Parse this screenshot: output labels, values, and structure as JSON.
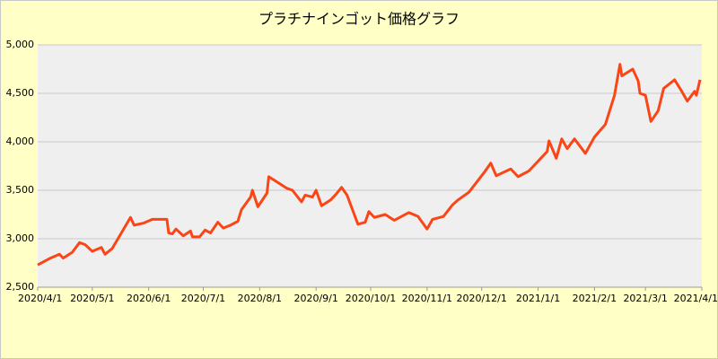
{
  "chart_data": {
    "type": "line",
    "title": "プラチナインゴット価格グラフ",
    "x": [
      "2020/4/1",
      "2020/4/8",
      "2020/4/13",
      "2020/4/15",
      "2020/4/20",
      "2020/4/24",
      "2020/4/27",
      "2020/5/1",
      "2020/5/6",
      "2020/5/8",
      "2020/5/12",
      "2020/5/22",
      "2020/5/24",
      "2020/5/29",
      "2020/6/3",
      "2020/6/11",
      "2020/6/12",
      "2020/6/14",
      "2020/6/16",
      "2020/6/20",
      "2020/6/24",
      "2020/6/25",
      "2020/6/29",
      "2020/7/2",
      "2020/7/5",
      "2020/7/9",
      "2020/7/12",
      "2020/7/16",
      "2020/7/20",
      "2020/7/22",
      "2020/7/27",
      "2020/7/28",
      "2020/7/31",
      "2020/8/5",
      "2020/8/6",
      "2020/8/16",
      "2020/8/19",
      "2020/8/24",
      "2020/8/26",
      "2020/8/30",
      "2020/9/1",
      "2020/9/4",
      "2020/9/9",
      "2020/9/12",
      "2020/9/15",
      "2020/9/18",
      "2020/9/24",
      "2020/9/28",
      "2020/9/30",
      "2020/10/3",
      "2020/10/9",
      "2020/10/14",
      "2020/10/22",
      "2020/10/27",
      "2020/11/1",
      "2020/11/4",
      "2020/11/10",
      "2020/11/15",
      "2020/11/18",
      "2020/11/24",
      "2020/12/3",
      "2020/12/6",
      "2020/12/9",
      "2020/12/17",
      "2020/12/21",
      "2020/12/27",
      "2021/1/6",
      "2021/1/7",
      "2021/1/11",
      "2021/1/14",
      "2021/1/17",
      "2021/1/21",
      "2021/1/27",
      "2021/2/1",
      "2021/2/7",
      "2021/2/12",
      "2021/2/15",
      "2021/2/16",
      "2021/2/22",
      "2021/2/25",
      "2021/2/26",
      "2021/3/1",
      "2021/3/4",
      "2021/3/8",
      "2021/3/11",
      "2021/3/15",
      "2021/3/17",
      "2021/3/21",
      "2021/3/24",
      "2021/3/28",
      "2021/3/29",
      "2021/3/31"
    ],
    "series": [
      {
        "color": "#fa4616",
        "values": [
          2730,
          2800,
          2840,
          2800,
          2860,
          2960,
          2940,
          2870,
          2910,
          2840,
          2900,
          3220,
          3140,
          3160,
          3200,
          3200,
          3060,
          3050,
          3100,
          3030,
          3080,
          3020,
          3020,
          3090,
          3060,
          3170,
          3110,
          3140,
          3180,
          3300,
          3430,
          3500,
          3330,
          3470,
          3640,
          3520,
          3500,
          3380,
          3450,
          3430,
          3500,
          3340,
          3400,
          3460,
          3530,
          3450,
          3150,
          3170,
          3280,
          3220,
          3250,
          3190,
          3270,
          3230,
          3100,
          3200,
          3230,
          3350,
          3400,
          3480,
          3700,
          3780,
          3650,
          3720,
          3640,
          3700,
          3900,
          4010,
          3830,
          4030,
          3930,
          4030,
          3880,
          4050,
          4180,
          4480,
          4800,
          4680,
          4750,
          4630,
          4500,
          4480,
          4210,
          4320,
          4550,
          4610,
          4640,
          4520,
          4420,
          4520,
          4480,
          4640
        ]
      }
    ],
    "xlim": [
      "2020/4/1",
      "2021/4/1"
    ],
    "xticks": [
      "2020/4/1",
      "2020/5/1",
      "2020/6/1",
      "2020/7/1",
      "2020/8/1",
      "2020/9/1",
      "2020/10/1",
      "2020/11/1",
      "2020/12/1",
      "2021/1/1",
      "2021/2/1",
      "2021/3/1",
      "2021/4/1"
    ],
    "ylim": [
      2500,
      5000
    ],
    "yticks": [
      {
        "value": 2500,
        "label": "2,500"
      },
      {
        "value": 3000,
        "label": "3,000"
      },
      {
        "value": 3500,
        "label": "3,500"
      },
      {
        "value": 4000,
        "label": "4,000"
      },
      {
        "value": 4500,
        "label": "4,500"
      },
      {
        "value": 5000,
        "label": "5,000"
      }
    ],
    "grid": true
  }
}
